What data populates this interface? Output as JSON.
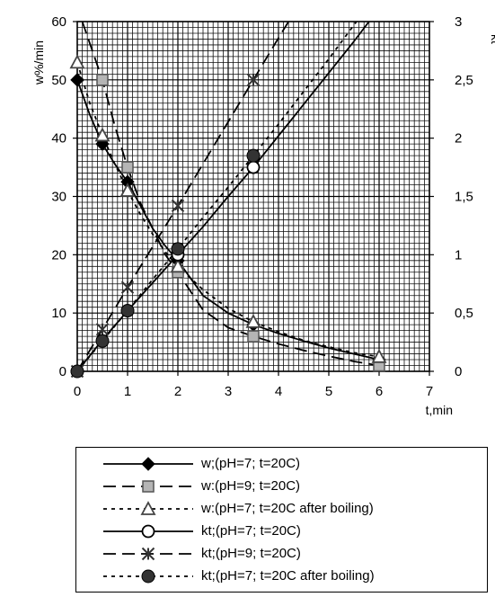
{
  "chart_data": {
    "type": "line",
    "title": "",
    "xlabel": "t,min",
    "ylabel_left": "w%/min",
    "ylabel_right": "kt",
    "xlim": [
      0,
      7
    ],
    "ylim_left": [
      0,
      60
    ],
    "ylim_right": [
      0,
      3
    ],
    "x_ticks": [
      "0",
      "1",
      "2",
      "3",
      "4",
      "5",
      "6",
      "7"
    ],
    "y_left_ticks": [
      "0",
      "10",
      "20",
      "30",
      "40",
      "50",
      "60"
    ],
    "y_right_ticks": [
      "0",
      "0,5",
      "1",
      "1,5",
      "2",
      "2,5",
      "3"
    ],
    "grid": true,
    "legend_position": "bottom",
    "series": [
      {
        "name": "w;(pH=7; t=20C)",
        "axis": "left",
        "style": "solid",
        "marker": "diamond-filled",
        "points": [
          [
            0,
            50
          ],
          [
            0.5,
            39
          ],
          [
            1,
            32.5
          ],
          [
            2,
            19
          ],
          [
            3.5,
            8
          ],
          [
            6,
            2
          ]
        ],
        "curve": [
          [
            0,
            50
          ],
          [
            0.25,
            44
          ],
          [
            0.5,
            39
          ],
          [
            0.75,
            35.5
          ],
          [
            1,
            32.5
          ],
          [
            1.25,
            28.5
          ],
          [
            1.5,
            24.5
          ],
          [
            1.75,
            21.5
          ],
          [
            2,
            19
          ],
          [
            2.5,
            13
          ],
          [
            3,
            10
          ],
          [
            3.5,
            8
          ],
          [
            4,
            6.5
          ],
          [
            4.5,
            5.2
          ],
          [
            5,
            4
          ],
          [
            5.5,
            3
          ],
          [
            6,
            2
          ]
        ]
      },
      {
        "name": "w:(pH=9; t=20C)",
        "axis": "left",
        "style": "long-dash",
        "marker": "square-gray",
        "points": [
          [
            0.5,
            50
          ],
          [
            1,
            35
          ],
          [
            2,
            17
          ],
          [
            3.5,
            6
          ],
          [
            6,
            1
          ]
        ],
        "curve": [
          [
            0.1,
            60
          ],
          [
            0.3,
            55
          ],
          [
            0.5,
            50
          ],
          [
            0.75,
            42
          ],
          [
            1,
            35
          ],
          [
            1.25,
            29
          ],
          [
            1.5,
            24.5
          ],
          [
            1.75,
            20
          ],
          [
            2,
            17
          ],
          [
            2.5,
            10.5
          ],
          [
            3,
            7.5
          ],
          [
            3.5,
            6
          ],
          [
            4,
            4.7
          ],
          [
            4.5,
            3.6
          ],
          [
            5,
            2.6
          ],
          [
            5.5,
            1.7
          ],
          [
            6,
            1
          ]
        ]
      },
      {
        "name": "w:(pH=7; t=20C after boiling)",
        "axis": "left",
        "style": "dotted",
        "marker": "triangle-open",
        "points": [
          [
            0,
            53
          ],
          [
            0.5,
            40.5
          ],
          [
            1,
            31
          ],
          [
            2,
            18
          ],
          [
            3.5,
            8.5
          ],
          [
            6,
            2.5
          ]
        ],
        "curve": [
          [
            0,
            53
          ],
          [
            0.25,
            46
          ],
          [
            0.5,
            40.5
          ],
          [
            0.75,
            35.5
          ],
          [
            1,
            31
          ],
          [
            1.25,
            27
          ],
          [
            1.5,
            23.5
          ],
          [
            1.75,
            20.5
          ],
          [
            2,
            18
          ],
          [
            2.5,
            14
          ],
          [
            3,
            10.8
          ],
          [
            3.5,
            8.5
          ],
          [
            4,
            6.8
          ],
          [
            4.5,
            5.3
          ],
          [
            5,
            4.2
          ],
          [
            5.5,
            3.2
          ],
          [
            6,
            2.5
          ]
        ]
      },
      {
        "name": "kt;(pH=7; t=20C)",
        "axis": "right",
        "style": "solid",
        "marker": "circle-open",
        "points": [
          [
            0,
            0
          ],
          [
            1,
            0.52
          ],
          [
            2,
            1
          ],
          [
            3.5,
            1.75
          ]
        ],
        "curve": [
          [
            0,
            0
          ],
          [
            0.5,
            0.27
          ],
          [
            1,
            0.52
          ],
          [
            1.5,
            0.76
          ],
          [
            2,
            1
          ],
          [
            2.5,
            1.24
          ],
          [
            3,
            1.5
          ],
          [
            3.5,
            1.75
          ],
          [
            4,
            2.02
          ],
          [
            4.5,
            2.29
          ],
          [
            5,
            2.56
          ],
          [
            5.5,
            2.83
          ],
          [
            5.8,
            3
          ]
        ]
      },
      {
        "name": "kt;(pH=9; t=20C)",
        "axis": "right",
        "style": "long-dash",
        "marker": "asterisk",
        "points": [
          [
            0,
            0
          ],
          [
            0.5,
            0.36
          ],
          [
            1,
            0.72
          ],
          [
            2,
            1.42
          ],
          [
            3.5,
            2.5
          ]
        ],
        "curve": [
          [
            0,
            0
          ],
          [
            0.5,
            0.36
          ],
          [
            1,
            0.72
          ],
          [
            1.5,
            1.07
          ],
          [
            2,
            1.42
          ],
          [
            2.5,
            1.78
          ],
          [
            3,
            2.14
          ],
          [
            3.5,
            2.5
          ],
          [
            4,
            2.86
          ],
          [
            4.2,
            3
          ]
        ]
      },
      {
        "name": "kt;(pH=7; t=20C after boiling)",
        "axis": "right",
        "style": "dotted",
        "marker": "circle-filled",
        "points": [
          [
            0,
            0
          ],
          [
            0.5,
            0.26
          ],
          [
            1,
            0.52
          ],
          [
            2,
            1.05
          ],
          [
            3.5,
            1.85
          ]
        ],
        "curve": [
          [
            0,
            0
          ],
          [
            0.5,
            0.26
          ],
          [
            1,
            0.52
          ],
          [
            1.5,
            0.79
          ],
          [
            2,
            1.05
          ],
          [
            2.5,
            1.32
          ],
          [
            3,
            1.58
          ],
          [
            3.5,
            1.85
          ],
          [
            4,
            2.12
          ],
          [
            4.5,
            2.4
          ],
          [
            5,
            2.68
          ],
          [
            5.55,
            3
          ]
        ]
      }
    ]
  }
}
